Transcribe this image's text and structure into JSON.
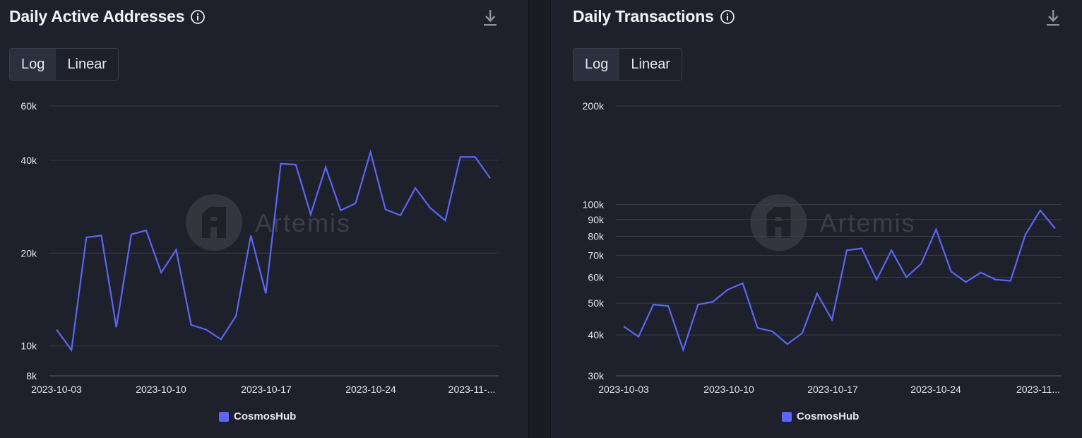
{
  "panels": [
    {
      "title": "Daily Active Addresses",
      "toggle": [
        "Log",
        "Linear"
      ],
      "legend": "CosmosHub",
      "watermark": "Artemis"
    },
    {
      "title": "Daily Transactions",
      "toggle": [
        "Log",
        "Linear"
      ],
      "legend": "CosmosHub",
      "watermark": "Artemis"
    }
  ],
  "colors": {
    "line": "#5b66f5",
    "grid": "#3a3d4b",
    "background": "#1e202b"
  },
  "chart_data": [
    {
      "type": "line",
      "title": "Daily Active Addresses",
      "scale": "log",
      "ylim": [
        8000,
        60000
      ],
      "y_ticks": [
        8000,
        10000,
        20000,
        40000,
        60000
      ],
      "y_tick_labels": [
        "8k",
        "10k",
        "20k",
        "40k",
        "60k"
      ],
      "x_tick_labels": [
        "2023-10-03",
        "2023-10-10",
        "2023-10-17",
        "2023-10-24",
        "2023-11-..."
      ],
      "x": [
        "2023-10-03",
        "2023-10-04",
        "2023-10-05",
        "2023-10-06",
        "2023-10-07",
        "2023-10-08",
        "2023-10-09",
        "2023-10-10",
        "2023-10-11",
        "2023-10-12",
        "2023-10-13",
        "2023-10-14",
        "2023-10-15",
        "2023-10-16",
        "2023-10-17",
        "2023-10-18",
        "2023-10-19",
        "2023-10-20",
        "2023-10-21",
        "2023-10-22",
        "2023-10-23",
        "2023-10-24",
        "2023-10-25",
        "2023-10-26",
        "2023-10-27",
        "2023-10-28",
        "2023-10-29",
        "2023-10-30",
        "2023-10-31",
        "2023-11-01"
      ],
      "series": [
        {
          "name": "CosmosHub",
          "values": [
            11300,
            9700,
            22500,
            22800,
            11500,
            23000,
            23700,
            17300,
            20500,
            11700,
            11300,
            10500,
            12500,
            22800,
            14800,
            39000,
            38700,
            26700,
            38000,
            27500,
            29000,
            42500,
            27700,
            26500,
            32500,
            28000,
            25500,
            41000,
            41000,
            35000
          ]
        }
      ],
      "grid": true,
      "legend": "bottom-center"
    },
    {
      "type": "line",
      "title": "Daily Transactions",
      "scale": "log",
      "ylim": [
        30000,
        200000
      ],
      "y_ticks": [
        30000,
        40000,
        50000,
        60000,
        70000,
        80000,
        90000,
        100000,
        200000
      ],
      "y_tick_labels": [
        "30k",
        "40k",
        "50k",
        "60k",
        "70k",
        "80k",
        "90k",
        "100k",
        "200k"
      ],
      "x_tick_labels": [
        "2023-10-03",
        "2023-10-10",
        "2023-10-17",
        "2023-10-24",
        "2023-11..."
      ],
      "x": [
        "2023-10-03",
        "2023-10-04",
        "2023-10-05",
        "2023-10-06",
        "2023-10-07",
        "2023-10-08",
        "2023-10-09",
        "2023-10-10",
        "2023-10-11",
        "2023-10-12",
        "2023-10-13",
        "2023-10-14",
        "2023-10-15",
        "2023-10-16",
        "2023-10-17",
        "2023-10-18",
        "2023-10-19",
        "2023-10-20",
        "2023-10-21",
        "2023-10-22",
        "2023-10-23",
        "2023-10-24",
        "2023-10-25",
        "2023-10-26",
        "2023-10-27",
        "2023-10-28",
        "2023-10-29",
        "2023-10-30",
        "2023-10-31",
        "2023-11-01"
      ],
      "series": [
        {
          "name": "CosmosHub",
          "values": [
            42500,
            39500,
            49500,
            49000,
            36000,
            49500,
            50500,
            55000,
            57500,
            42000,
            41000,
            37500,
            40500,
            53500,
            44500,
            72500,
            73500,
            59000,
            72500,
            60000,
            66000,
            84000,
            62500,
            58000,
            62000,
            59000,
            58500,
            81000,
            96000,
            84500
          ]
        }
      ],
      "grid": true,
      "legend": "bottom-center"
    }
  ]
}
